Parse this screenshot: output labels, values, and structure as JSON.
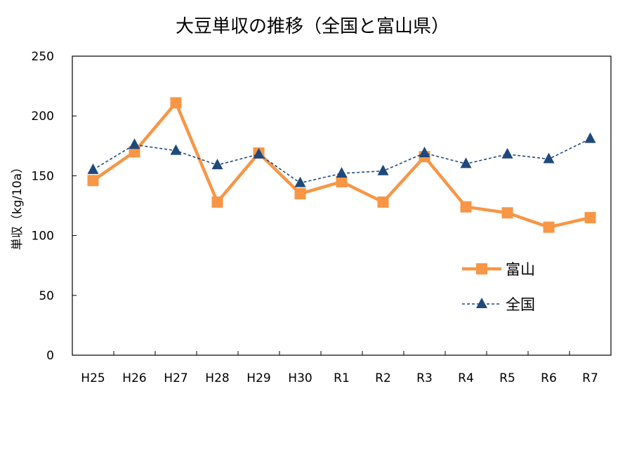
{
  "chart_data": {
    "type": "line",
    "title": "大豆単収の推移（全国と富山県）",
    "ylabel": "単収（kg/10a）",
    "xlabel": "",
    "categories": [
      "H25",
      "H26",
      "H27",
      "H28",
      "H29",
      "H30",
      "R1",
      "R2",
      "R3",
      "R4",
      "R5",
      "R6",
      "R7"
    ],
    "ylim": [
      0,
      250
    ],
    "yticks": [
      0,
      50,
      100,
      150,
      200,
      250
    ],
    "grid": false,
    "legend_position": "right-center",
    "series": [
      {
        "name": "富山",
        "color": "#F79646",
        "marker": "square",
        "line": "solid",
        "values": [
          146,
          170,
          211,
          128,
          169,
          135,
          145,
          128,
          166,
          124,
          119,
          107,
          115
        ]
      },
      {
        "name": "全国",
        "color": "#1F497D",
        "marker": "triangle",
        "line": "dashed",
        "values": [
          155,
          176,
          171,
          159,
          168,
          144,
          152,
          154,
          169,
          160,
          168,
          164,
          181
        ]
      }
    ]
  }
}
